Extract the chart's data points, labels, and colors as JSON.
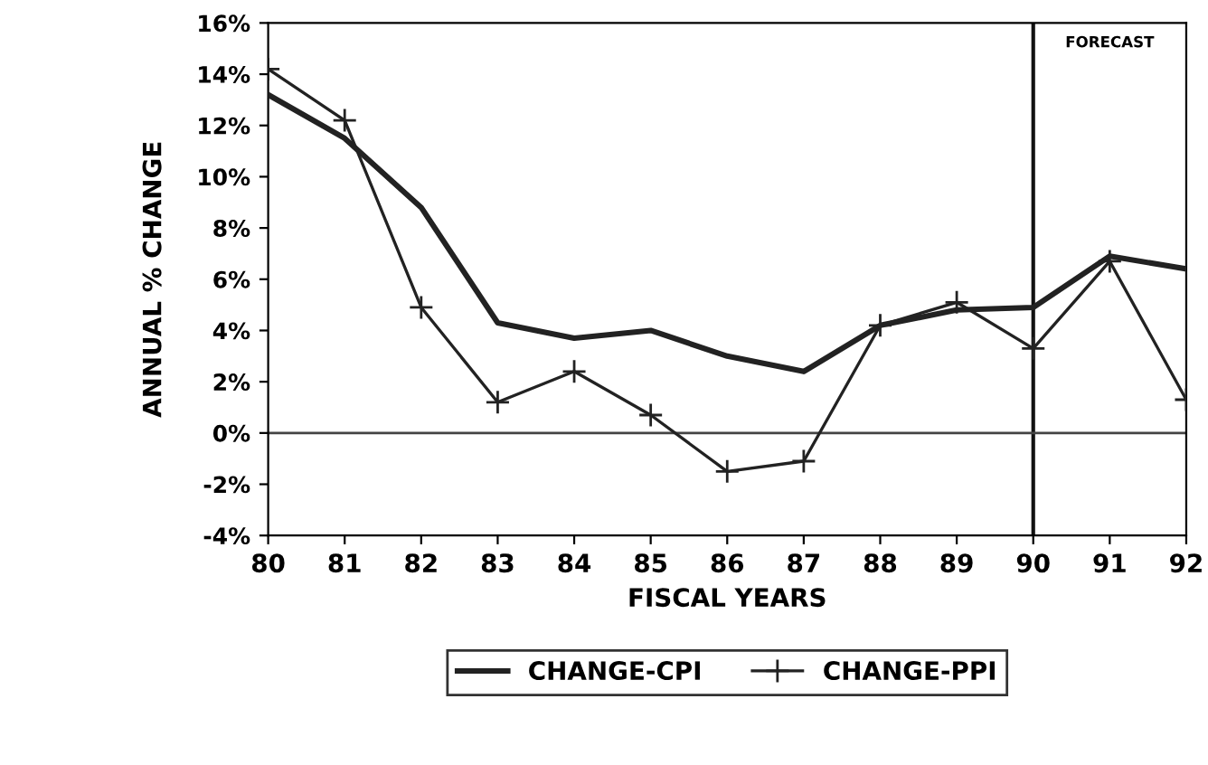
{
  "chart_data": {
    "type": "line",
    "xlabel": "FISCAL YEARS",
    "ylabel": "ANNUAL % CHANGE",
    "x": [
      80,
      81,
      82,
      83,
      84,
      85,
      86,
      87,
      88,
      89,
      90,
      91,
      92
    ],
    "series": [
      {
        "name": "CHANGE-CPI",
        "color": "#222222",
        "marker": "none",
        "values": [
          13.2,
          11.5,
          8.8,
          4.3,
          3.7,
          4.0,
          3.0,
          2.4,
          4.2,
          4.8,
          4.9,
          6.9,
          6.4
        ]
      },
      {
        "name": "CHANGE-PPI",
        "color": "#222222",
        "marker": "cross",
        "values": [
          14.2,
          12.2,
          4.9,
          1.2,
          2.4,
          0.7,
          -1.5,
          -1.1,
          4.2,
          5.1,
          3.3,
          6.7,
          1.3
        ]
      }
    ],
    "xlim": [
      80,
      92
    ],
    "xticks": [
      80,
      81,
      82,
      83,
      84,
      85,
      86,
      87,
      88,
      89,
      90,
      91,
      92
    ],
    "ylim": [
      -4,
      16
    ],
    "yticks": [
      {
        "value": -4,
        "label": "-4%"
      },
      {
        "value": -2,
        "label": "-2%"
      },
      {
        "value": 0,
        "label": "0%"
      },
      {
        "value": 2,
        "label": "2%"
      },
      {
        "value": 4,
        "label": "4%"
      },
      {
        "value": 6,
        "label": "6%"
      },
      {
        "value": 8,
        "label": "8%"
      },
      {
        "value": 10,
        "label": "10%"
      },
      {
        "value": 12,
        "label": "12%"
      },
      {
        "value": 14,
        "label": "14%"
      },
      {
        "value": 16,
        "label": "16%"
      }
    ],
    "ref_lines": [
      {
        "axis": "y",
        "value": 0,
        "label": null,
        "color": "#444444"
      },
      {
        "axis": "x",
        "value": 90,
        "label": "FORECAST",
        "color": "#111111"
      }
    ],
    "grid": false,
    "legend": "bottom",
    "line_style": "solid"
  }
}
